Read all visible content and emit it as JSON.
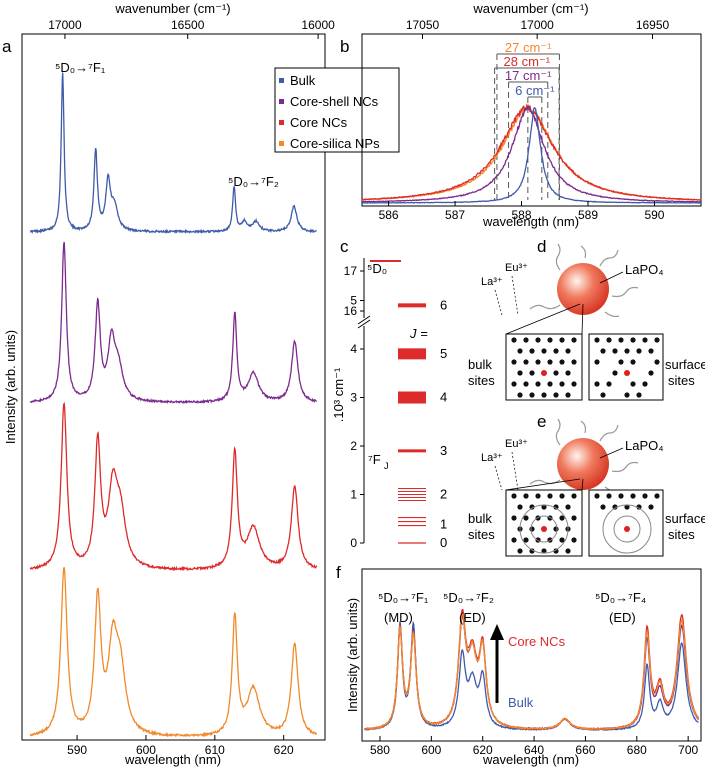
{
  "panel_labels": {
    "a": "a",
    "b": "b",
    "c": "c",
    "d": "d",
    "e": "e",
    "f": "f"
  },
  "colors": {
    "Bulk": "#3f5ba9",
    "Core-shell NCs": "#7b2a8e",
    "Core NCs": "#dd2a2a",
    "Core-silica NPs": "#f08a2a"
  },
  "chart_data": [
    {
      "id": "a",
      "type": "line",
      "xlabel": "wavelength (nm)",
      "ylabel": "Intensity (arb. units)",
      "top_xlabel": "wavenumber (cm⁻¹)",
      "xlim": [
        582,
        626
      ],
      "xticks": [
        590,
        600,
        610,
        620
      ],
      "top_ticks": [
        17000,
        16500,
        16000
      ],
      "grid": false,
      "legend_position": "top-right",
      "annotations": [
        {
          "text": "⁵D₀→⁷F₁",
          "x": 589
        },
        {
          "text": "⁵D₀→⁷F₂",
          "x": 616.5
        }
      ],
      "series": [
        {
          "name": "Bulk",
          "peaks": [
            [
              587.9,
              1.0,
              0.25
            ],
            [
              592.7,
              0.5,
              0.3
            ],
            [
              594.5,
              0.3,
              0.4
            ],
            [
              595.4,
              0.15,
              0.6
            ],
            [
              612.8,
              0.28,
              0.25
            ],
            [
              614.3,
              0.06,
              0.5
            ],
            [
              616,
              0.06,
              0.6
            ],
            [
              621.5,
              0.16,
              0.5
            ]
          ]
        },
        {
          "name": "Core-shell NCs",
          "peaks": [
            [
              588.1,
              1.0,
              0.4
            ],
            [
              593,
              0.6,
              0.45
            ],
            [
              595,
              0.35,
              0.6
            ],
            [
              596,
              0.2,
              0.8
            ],
            [
              612.9,
              0.55,
              0.35
            ],
            [
              615.6,
              0.18,
              0.9
            ],
            [
              621.6,
              0.38,
              0.55
            ]
          ]
        },
        {
          "name": "Core NCs",
          "peaks": [
            [
              588.1,
              1.0,
              0.5
            ],
            [
              593,
              0.75,
              0.5
            ],
            [
              595.2,
              0.45,
              0.8
            ],
            [
              596.3,
              0.3,
              0.9
            ],
            [
              612.9,
              0.7,
              0.45
            ],
            [
              615.6,
              0.25,
              1.1
            ],
            [
              621.6,
              0.5,
              0.6
            ]
          ]
        },
        {
          "name": "Core-silica NPs",
          "peaks": [
            [
              588.1,
              1.0,
              0.55
            ],
            [
              593,
              0.8,
              0.55
            ],
            [
              595.2,
              0.5,
              0.8
            ],
            [
              596.3,
              0.35,
              0.9
            ],
            [
              612.9,
              0.7,
              0.45
            ],
            [
              615.6,
              0.28,
              1.1
            ],
            [
              621.6,
              0.55,
              0.6
            ]
          ]
        }
      ]
    },
    {
      "id": "b",
      "type": "line",
      "xlabel": "wavelength (nm)",
      "top_xlabel": "wavenumber (cm⁻¹)",
      "xlim": [
        585.6,
        590.7
      ],
      "xticks": [
        586,
        587,
        588,
        589,
        590
      ],
      "top_ticks": [
        17050,
        17000,
        16950
      ],
      "grid": false,
      "fwhm_labels": [
        {
          "text": "27 cm⁻¹",
          "series": "Core-silica NPs"
        },
        {
          "text": "28 cm⁻¹",
          "series": "Core NCs"
        },
        {
          "text": "17 cm⁻¹",
          "series": "Core-shell NCs"
        },
        {
          "text": "6 cm⁻¹",
          "series": "Bulk"
        }
      ],
      "series": [
        {
          "name": "Core-silica NPs",
          "center": 588.1,
          "fwhm": 0.94
        },
        {
          "name": "Core NCs",
          "center": 588.08,
          "fwhm": 0.97
        },
        {
          "name": "Core-shell NCs",
          "center": 588.1,
          "fwhm": 0.59
        },
        {
          "name": "Bulk",
          "center": 588.2,
          "fwhm": 0.21
        }
      ]
    },
    {
      "id": "c",
      "type": "diagram",
      "ylabel": ".10³ cm⁻¹",
      "yticks_low": [
        0,
        1,
        2,
        3,
        4,
        5
      ],
      "yticks_high": [
        16,
        17
      ],
      "upper_state": "⁵D₀",
      "manifold_label": "⁷F",
      "manifold_sub": "J",
      "j_header": "J =",
      "levels": [
        {
          "j": "0",
          "energy": 0.0
        },
        {
          "j": "1",
          "energy": 0.38
        },
        {
          "j": "2",
          "energy": 1.0
        },
        {
          "j": "3",
          "energy": 1.9
        },
        {
          "j": "4",
          "energy": 3.0
        },
        {
          "j": "5",
          "energy": 3.9
        },
        {
          "j": "6",
          "energy": 4.9
        }
      ],
      "d0_energy": 17.25
    },
    {
      "id": "f",
      "type": "line",
      "xlabel": "wavelength (nm)",
      "ylabel": "Intensity (arb. units)",
      "xlim": [
        573,
        705
      ],
      "xticks": [
        580,
        600,
        620,
        640,
        660,
        680,
        700
      ],
      "grid": false,
      "transitions": [
        {
          "text": "⁵D₀→⁷F₁",
          "type": "(MD)"
        },
        {
          "text": "⁵D₀→⁷F₂",
          "type": "(ED)"
        },
        {
          "text": "⁵D₀→⁷F₄",
          "type": "(ED)"
        }
      ],
      "arrow_labels": {
        "top": "Core NCs",
        "bottom": "Bulk"
      },
      "series": [
        {
          "name": "Bulk",
          "peaks": [
            [
              587.8,
              0.95,
              1.1
            ],
            [
              593,
              0.95,
              1.2
            ],
            [
              612,
              0.65,
              1.5
            ],
            [
              616,
              0.4,
              2
            ],
            [
              620,
              0.45,
              1.5
            ],
            [
              652,
              0.1,
              2.5
            ],
            [
              684,
              0.58,
              1.2
            ],
            [
              689,
              0.22,
              1.5
            ],
            [
              697.5,
              0.8,
              2
            ]
          ]
        },
        {
          "name": "Core-shell NCs",
          "peaks": [
            [
              587.8,
              0.9,
              1.2
            ],
            [
              593,
              0.88,
              1.3
            ],
            [
              612,
              0.9,
              1.7
            ],
            [
              616,
              0.58,
              2.2
            ],
            [
              620,
              0.66,
              1.6
            ],
            [
              652,
              0.1,
              2.5
            ],
            [
              684,
              0.8,
              1.4
            ],
            [
              689,
              0.3,
              1.8
            ],
            [
              697.5,
              0.95,
              2.2
            ]
          ]
        },
        {
          "name": "Core NCs",
          "peaks": [
            [
              587.8,
              0.92,
              1.2
            ],
            [
              593,
              0.85,
              1.3
            ],
            [
              612,
              0.95,
              1.7
            ],
            [
              616,
              0.6,
              2.2
            ],
            [
              620,
              0.68,
              1.6
            ],
            [
              652,
              0.1,
              2.5
            ],
            [
              684,
              0.9,
              1.4
            ],
            [
              689,
              0.35,
              1.8
            ],
            [
              697.5,
              1.05,
              2.2
            ]
          ]
        },
        {
          "name": "Core-silica NPs",
          "peaks": [
            [
              587.8,
              0.9,
              1.2
            ],
            [
              593,
              0.85,
              1.3
            ],
            [
              612,
              0.92,
              1.7
            ],
            [
              616,
              0.58,
              2.2
            ],
            [
              620,
              0.66,
              1.6
            ],
            [
              652,
              0.1,
              2.5
            ],
            [
              684,
              0.85,
              1.4
            ],
            [
              689,
              0.33,
              1.8
            ],
            [
              697.5,
              1.0,
              2.2
            ]
          ]
        }
      ]
    }
  ],
  "schematic_d": {
    "particle": "LaPO₄",
    "eu": "Eu³⁺",
    "la": "La³⁺",
    "bulk_sites": "bulk\nsites",
    "surface_sites": "surface\nsites"
  },
  "schematic_e": {
    "particle": "LaPO₄",
    "eu": "Eu³⁺",
    "la": "La³⁺",
    "bulk_sites": "bulk\nsites",
    "surface_sites": "surface\nsites"
  }
}
